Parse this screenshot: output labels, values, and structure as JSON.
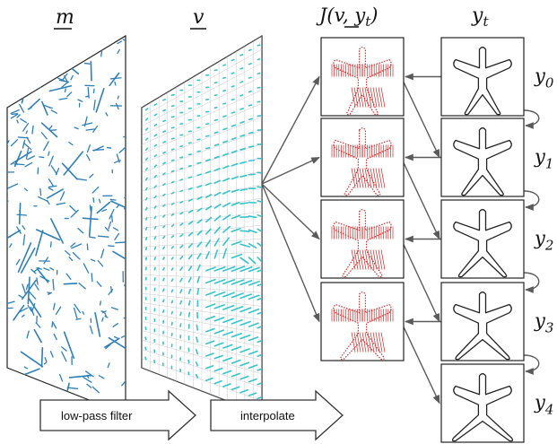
{
  "headers": {
    "m": "m",
    "v": "v",
    "interp_prefix": "J(",
    "interp_v": "v",
    "interp_sep": ", ",
    "interp_y": "y",
    "interp_sub": "t",
    "interp_suffix": ")",
    "y": "y",
    "y_sub": "t"
  },
  "steps": [
    {
      "label": "y",
      "sub": "0"
    },
    {
      "label": "y",
      "sub": "1"
    },
    {
      "label": "y",
      "sub": "2"
    },
    {
      "label": "y",
      "sub": "3"
    },
    {
      "label": "y",
      "sub": "4"
    }
  ],
  "arrows": {
    "filter": "low-pass filter",
    "interpolate": "interpolate"
  },
  "colors": {
    "m_vectors": "#2e7fb8",
    "v_vectors": "#33c4cc",
    "warp": "#d42a2a",
    "grid": "#bbbbbb",
    "outline": "#222222",
    "connector": "#5a5a5a"
  }
}
